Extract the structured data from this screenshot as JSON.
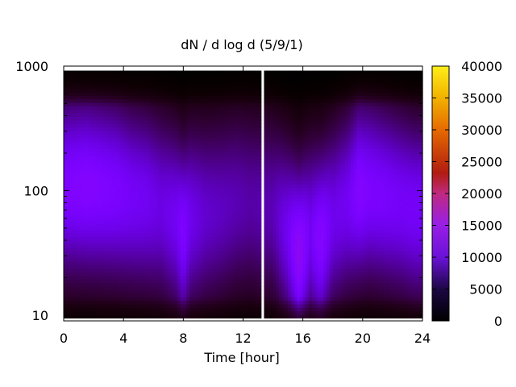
{
  "chart_data": {
    "type": "heatmap",
    "title": "dN / d log d (5/9/1)",
    "xlabel": "Time [hour]",
    "ylabel": "",
    "x_ticks": [
      0,
      4,
      8,
      12,
      16,
      20,
      24
    ],
    "xlim": [
      0,
      24
    ],
    "y_scale": "log",
    "y_ticks": [
      10,
      100,
      1000
    ],
    "ylim": [
      9,
      1000
    ],
    "data_ylim": [
      9.5,
      920
    ],
    "grid": false,
    "colorbar": {
      "range": [
        0,
        40000
      ],
      "ticks": [
        0,
        5000,
        10000,
        15000,
        20000,
        25000,
        30000,
        35000,
        40000
      ],
      "palette": "black-purple-red-orange-yellow"
    },
    "gap_hours": [
      13.1,
      13.4
    ],
    "columns": [
      {
        "t": 0.5,
        "peak_d": 110,
        "peak": 10000
      },
      {
        "t": 1.5,
        "peak_d": 110,
        "peak": 10500
      },
      {
        "t": 2.5,
        "peak_d": 105,
        "peak": 10000
      },
      {
        "t": 3.5,
        "peak_d": 100,
        "peak": 9500
      },
      {
        "t": 4.5,
        "peak_d": 90,
        "peak": 8500
      },
      {
        "t": 5.5,
        "peak_d": 85,
        "peak": 8000
      },
      {
        "t": 6.5,
        "peak_d": 75,
        "peak": 7000
      },
      {
        "t": 7.5,
        "peak_d": 60,
        "peak": 8000
      },
      {
        "t": 8.0,
        "peak_d": 45,
        "peak": 10000
      },
      {
        "t": 8.5,
        "peak_d": 60,
        "peak": 7500
      },
      {
        "t": 9.5,
        "peak_d": 65,
        "peak": 6000
      },
      {
        "t": 10.5,
        "peak_d": 70,
        "peak": 5500
      },
      {
        "t": 11.5,
        "peak_d": 80,
        "peak": 5000
      },
      {
        "t": 12.5,
        "peak_d": 80,
        "peak": 4500
      },
      {
        "t": 14.0,
        "peak_d": 70,
        "peak": 5000
      },
      {
        "t": 15.0,
        "peak_d": 45,
        "peak": 8000
      },
      {
        "t": 15.75,
        "peak_d": 30,
        "peak": 12500
      },
      {
        "t": 16.5,
        "peak_d": 45,
        "peak": 8000
      },
      {
        "t": 17.2,
        "peak_d": 40,
        "peak": 11000
      },
      {
        "t": 18.0,
        "peak_d": 60,
        "peak": 7500
      },
      {
        "t": 19.0,
        "peak_d": 80,
        "peak": 8000
      },
      {
        "t": 19.75,
        "peak_d": 100,
        "peak": 10500
      },
      {
        "t": 20.5,
        "peak_d": 100,
        "peak": 9500
      },
      {
        "t": 21.5,
        "peak_d": 90,
        "peak": 9000
      },
      {
        "t": 22.5,
        "peak_d": 80,
        "peak": 8500
      },
      {
        "t": 23.5,
        "peak_d": 70,
        "peak": 8500
      }
    ]
  }
}
